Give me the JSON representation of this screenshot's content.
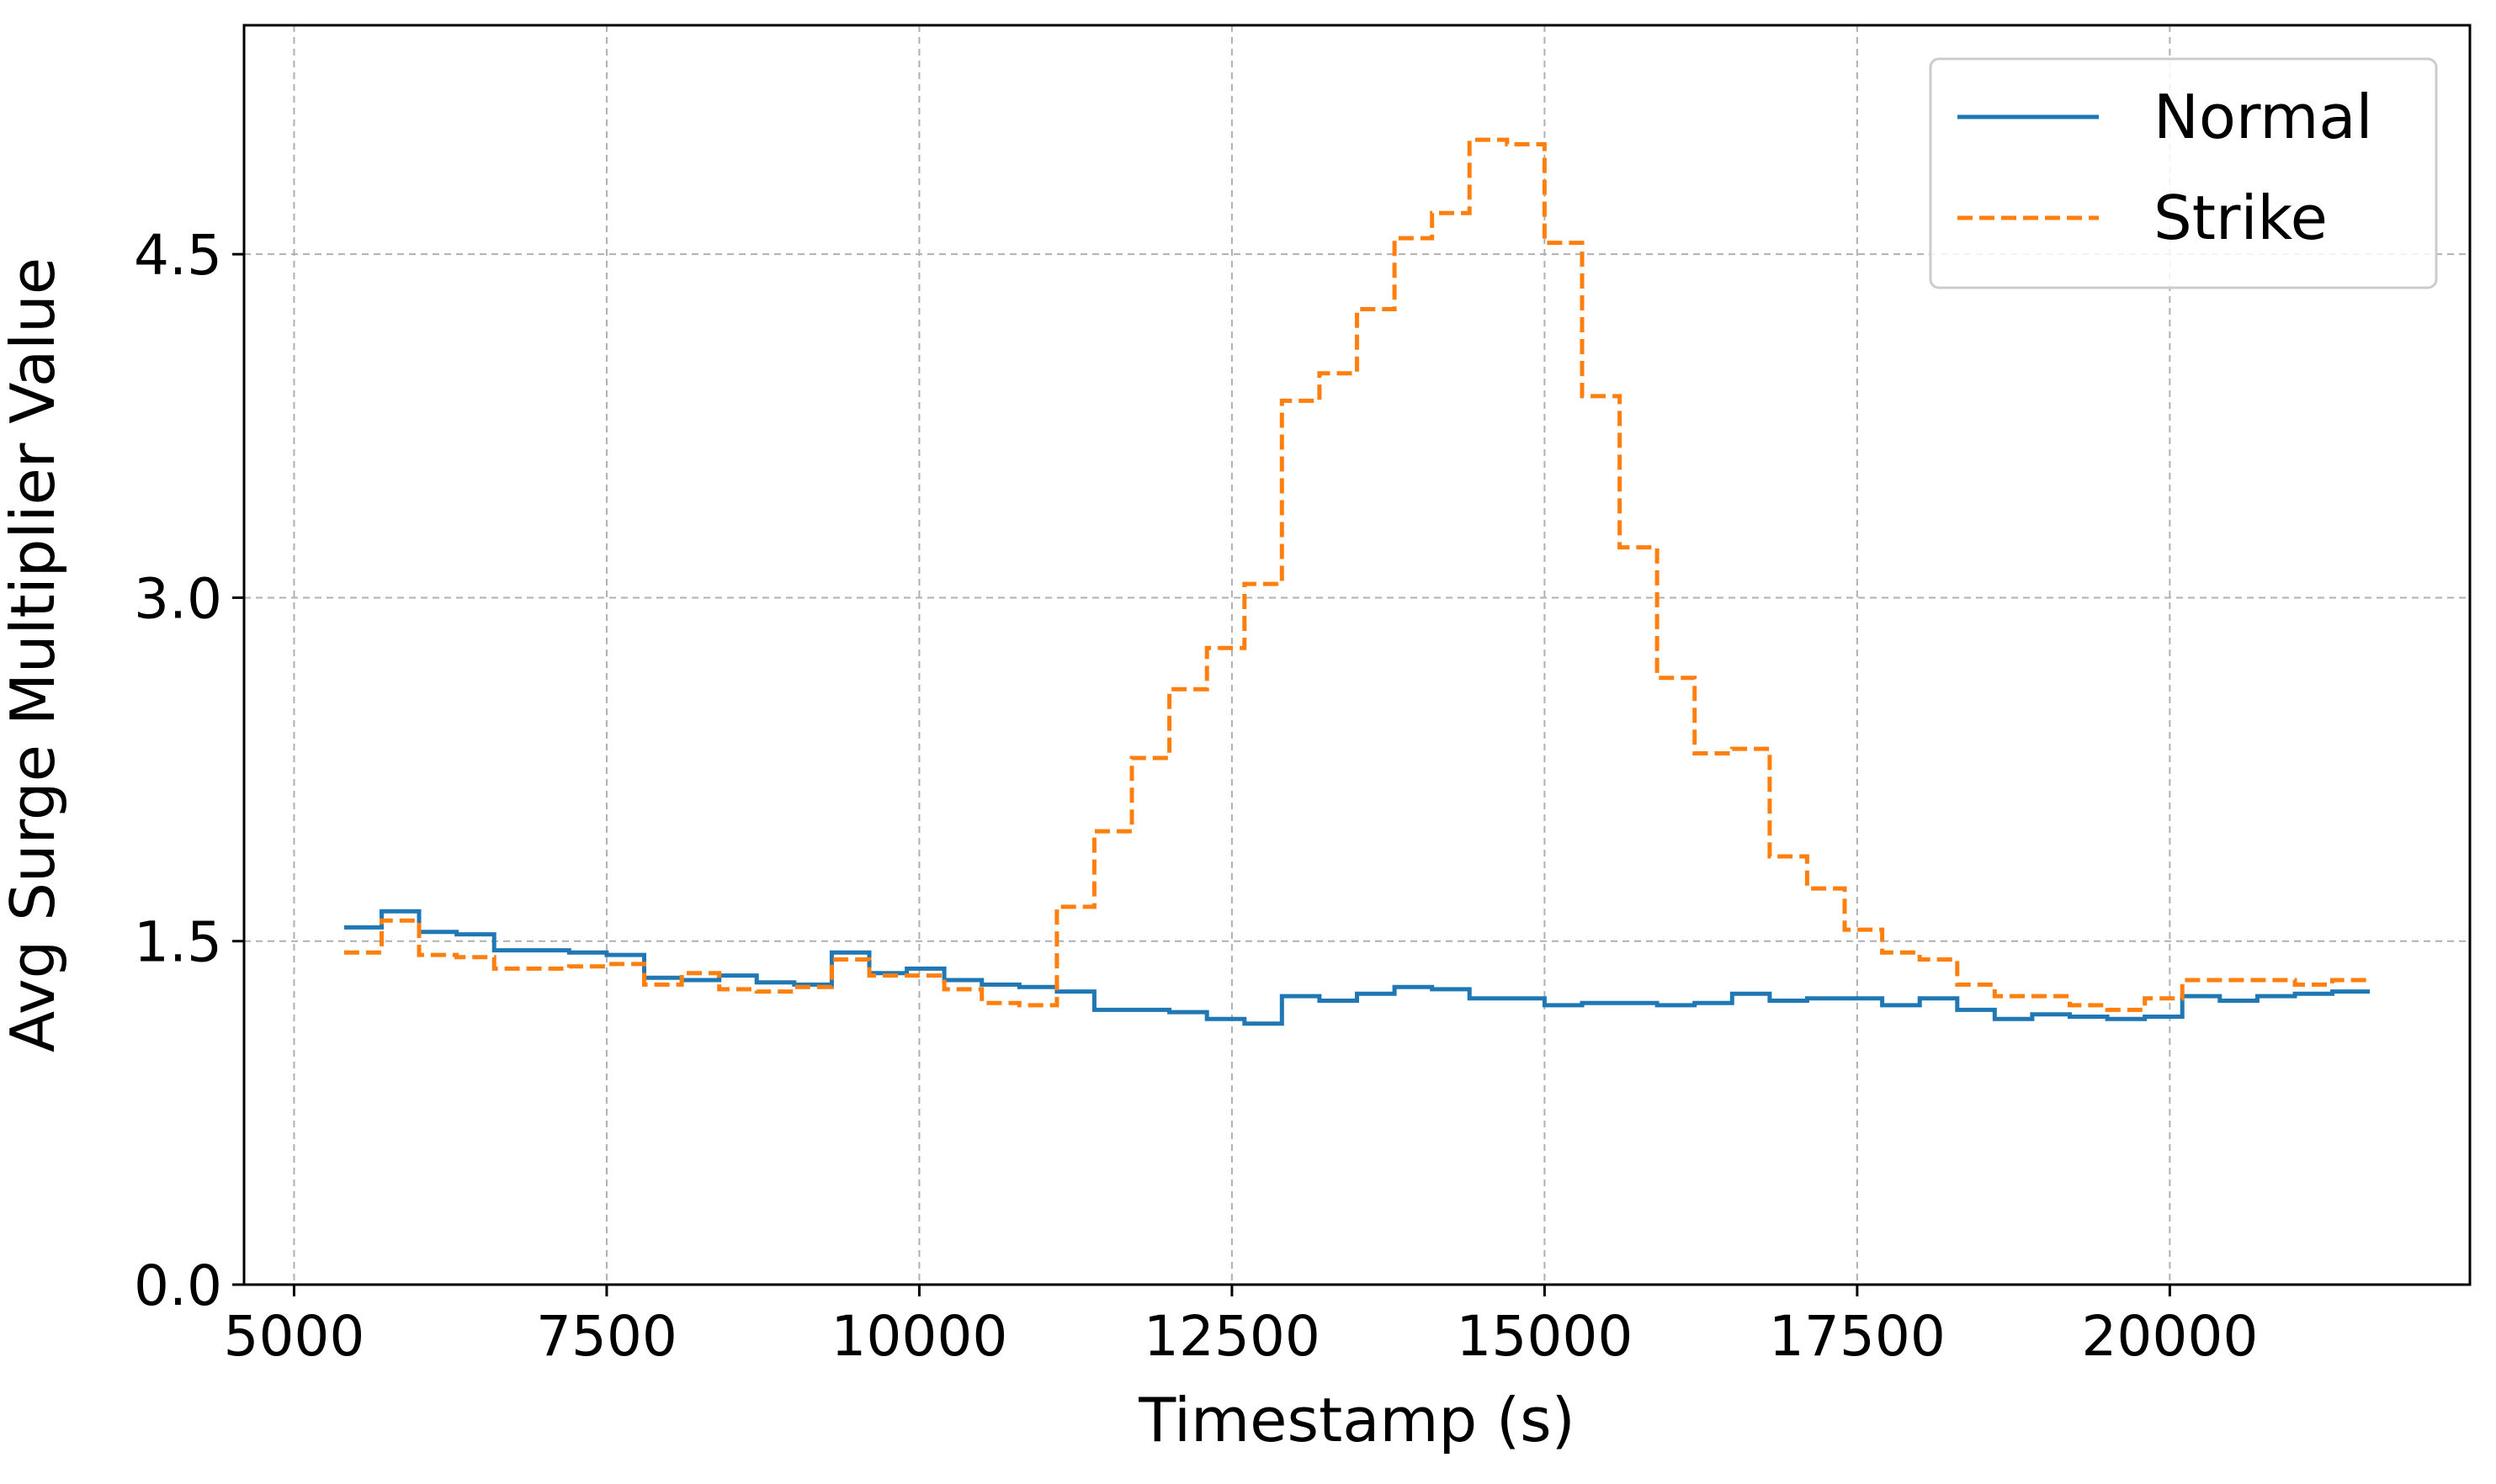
{
  "chart_data": {
    "type": "line",
    "step": true,
    "xlabel": "Timestamp (s)",
    "ylabel": "Avg Surge Multiplier Value",
    "xlim": [
      4600,
      22400
    ],
    "ylim": [
      0,
      5.5
    ],
    "xticks": [
      5000,
      7500,
      10000,
      12500,
      15000,
      17500,
      20000
    ],
    "xtick_labels": [
      "5000",
      "7500",
      "10000",
      "12500",
      "15000",
      "17500",
      "20000"
    ],
    "yticks": [
      0,
      1.5,
      3.0,
      4.5
    ],
    "ytick_labels": [
      "0.0",
      "1.5",
      "3.0",
      "4.5"
    ],
    "grid": true,
    "legend_position": "top-right",
    "series": [
      {
        "name": "Normal",
        "color": "#1f77b4",
        "style": "solid",
        "x": [
          5400,
          5700,
          6000,
          6300,
          6600,
          6900,
          7200,
          7500,
          7800,
          8100,
          8400,
          8700,
          9000,
          9300,
          9600,
          9900,
          10200,
          10500,
          10800,
          11100,
          11400,
          11700,
          12000,
          12300,
          12600,
          12900,
          13200,
          13500,
          13800,
          14100,
          14400,
          14700,
          15000,
          15300,
          15600,
          15900,
          16200,
          16500,
          16800,
          17100,
          17400,
          17700,
          18000,
          18300,
          18600,
          18900,
          19200,
          19500,
          19800,
          20100,
          20400,
          20700,
          21000,
          21300,
          21600
        ],
        "y": [
          1.56,
          1.63,
          1.54,
          1.53,
          1.46,
          1.46,
          1.45,
          1.44,
          1.34,
          1.33,
          1.35,
          1.32,
          1.31,
          1.45,
          1.36,
          1.38,
          1.33,
          1.31,
          1.3,
          1.28,
          1.2,
          1.2,
          1.19,
          1.16,
          1.14,
          1.26,
          1.24,
          1.27,
          1.3,
          1.29,
          1.25,
          1.25,
          1.22,
          1.23,
          1.23,
          1.22,
          1.23,
          1.27,
          1.24,
          1.25,
          1.25,
          1.22,
          1.25,
          1.2,
          1.16,
          1.18,
          1.17,
          1.16,
          1.17,
          1.26,
          1.24,
          1.26,
          1.27,
          1.28,
          1.28
        ]
      },
      {
        "name": "Strike",
        "color": "#ff7f0e",
        "style": "dashed",
        "x": [
          5400,
          5700,
          6000,
          6300,
          6600,
          6900,
          7200,
          7500,
          7800,
          8100,
          8400,
          8700,
          9000,
          9300,
          9600,
          9900,
          10200,
          10500,
          10800,
          11100,
          11400,
          11700,
          12000,
          12300,
          12600,
          12900,
          13200,
          13500,
          13800,
          14100,
          14400,
          14700,
          15000,
          15300,
          15600,
          15900,
          16200,
          16500,
          16800,
          17100,
          17400,
          17700,
          18000,
          18300,
          18600,
          18900,
          19200,
          19500,
          19800,
          20100,
          20400,
          20700,
          21000,
          21300,
          21600
        ],
        "y": [
          1.45,
          1.59,
          1.44,
          1.43,
          1.38,
          1.38,
          1.39,
          1.4,
          1.31,
          1.36,
          1.29,
          1.28,
          1.3,
          1.42,
          1.35,
          1.35,
          1.29,
          1.23,
          1.22,
          1.65,
          1.98,
          2.3,
          2.6,
          2.78,
          3.06,
          3.86,
          3.98,
          4.26,
          4.57,
          4.68,
          5.0,
          4.98,
          4.55,
          3.88,
          3.22,
          2.65,
          2.32,
          2.34,
          1.87,
          1.73,
          1.55,
          1.45,
          1.42,
          1.31,
          1.26,
          1.26,
          1.22,
          1.2,
          1.25,
          1.33,
          1.33,
          1.33,
          1.31,
          1.33,
          1.33
        ]
      }
    ]
  }
}
